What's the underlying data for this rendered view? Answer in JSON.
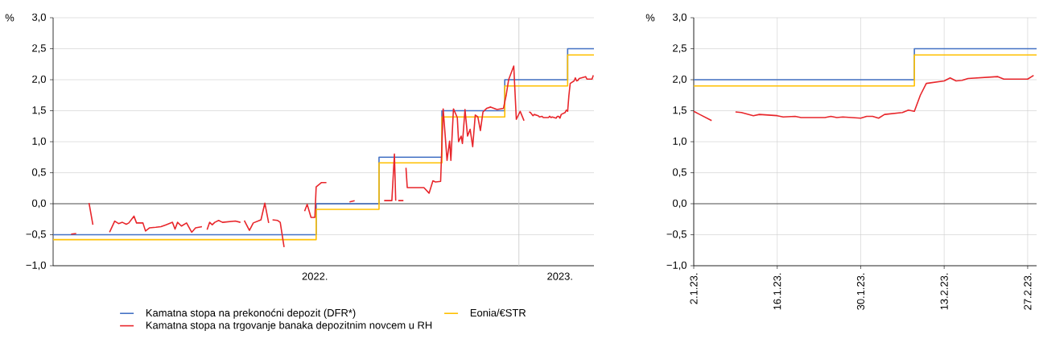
{
  "chart_data": [
    {
      "type": "line",
      "ylabel": "%",
      "xlim": [
        "2022-01-03",
        "2023-02-28T12:00"
      ],
      "ylim": [
        -1.0,
        3.0
      ],
      "xticks": [
        {
          "value": "2022-07-26",
          "label": "2022."
        },
        {
          "value": "2023-02-02",
          "label": "2023."
        }
      ],
      "yticks": [
        {
          "value": -1.0,
          "label": "−1,0"
        },
        {
          "value": -0.5,
          "label": "−0,5"
        },
        {
          "value": 0.0,
          "label": "0,0"
        },
        {
          "value": 0.5,
          "label": "0,5"
        },
        {
          "value": 1.0,
          "label": "1,0"
        },
        {
          "value": 1.5,
          "label": "1,5"
        },
        {
          "value": 2.0,
          "label": "2,0"
        },
        {
          "value": 2.5,
          "label": "2,5"
        },
        {
          "value": 3.0,
          "label": "3,0"
        }
      ],
      "grid": "y",
      "legend": "bottom",
      "line_style": "solid",
      "marker": "none",
      "ref_lines": [
        {
          "axis": "y",
          "value": 0,
          "color": "#333333"
        },
        {
          "axis": "x",
          "value": "2023-01-01",
          "color": "#c8c8c8"
        }
      ],
      "series": [
        {
          "name": "Kamatna stopa na prekonoćni depozit (DFR*)",
          "type": "step",
          "color": "#4472c4",
          "x": [
            "2022-01-03",
            "2022-07-27",
            "2022-09-14",
            "2022-11-02",
            "2022-12-21",
            "2023-02-08",
            "2023-02-28T12:00"
          ],
          "values": [
            -0.5,
            0.0,
            0.75,
            1.5,
            2.0,
            2.5,
            2.5
          ]
        },
        {
          "name": "Eonia/€STR",
          "type": "step",
          "color": "#ffc000",
          "x": [
            "2022-01-03",
            "2022-07-27",
            "2022-09-14",
            "2022-11-02",
            "2022-12-21",
            "2023-02-08",
            "2023-02-28T12:00"
          ],
          "values": [
            -0.58,
            -0.09,
            0.66,
            1.4,
            1.9,
            2.4,
            2.4
          ]
        },
        {
          "name": "Kamatna stopa na trgovanje banaka depozitnim novcem u RH",
          "type": "line",
          "color": "#e8262b",
          "x": [
            "2022-01-17",
            "2022-01-21",
            "2022-01-25",
            "2022-01-31",
            "2022-02-03",
            "2022-02-09",
            "2022-02-16",
            "2022-02-20",
            "2022-02-23",
            "2022-02-26",
            "2022-03-01",
            "2022-03-03",
            "2022-03-07",
            "2022-03-09",
            "2022-03-14",
            "2022-03-16",
            "2022-03-19",
            "2022-03-24",
            "2022-03-28",
            "2022-04-01",
            "2022-04-06",
            "2022-04-08",
            "2022-04-10",
            "2022-04-13",
            "2022-04-17",
            "2022-04-21",
            "2022-04-24",
            "2022-04-29",
            "2022-05-01",
            "2022-05-03",
            "2022-05-05",
            "2022-05-07",
            "2022-05-09",
            "2022-05-12",
            "2022-05-15",
            "2022-05-25",
            "2022-05-29",
            "2022-05-31",
            "2022-06-01",
            "2022-06-05",
            "2022-06-08",
            "2022-06-14",
            "2022-06-17",
            "2022-06-20",
            "2022-06-21",
            "2022-06-23",
            "2022-06-27",
            "2022-06-29",
            "2022-07-02",
            "2022-07-10",
            "2022-07-18",
            "2022-07-20",
            "2022-07-23",
            "2022-07-26",
            "2022-07-27",
            "2022-07-31",
            "2022-08-04",
            "2022-08-15",
            "2022-08-22",
            "2022-08-26",
            "2022-09-01",
            "2022-09-18",
            "2022-09-24",
            "2022-09-26",
            "2022-09-27",
            "2022-09-28",
            "2022-09-29",
            "2022-10-03",
            "2022-10-04",
            "2022-10-05",
            "2022-10-06",
            "2022-10-19",
            "2022-10-23",
            "2022-10-26",
            "2022-10-28",
            "2022-11-01",
            "2022-11-03",
            "2022-11-06",
            "2022-11-08",
            "2022-11-09",
            "2022-11-11",
            "2022-11-14",
            "2022-11-15",
            "2022-11-17",
            "2022-11-18",
            "2022-11-20",
            "2022-11-22",
            "2022-11-24",
            "2022-11-26",
            "2022-11-28",
            "2022-11-30",
            "2022-12-02",
            "2022-12-04",
            "2022-12-07",
            "2022-12-10",
            "2022-12-15",
            "2022-12-20",
            "2022-12-22",
            "2022-12-24",
            "2022-12-28",
            "2022-12-30",
            "2023-01-02",
            "2023-01-03",
            "2023-01-05",
            "2023-01-07",
            "2023-01-09",
            "2023-01-10",
            "2023-01-12",
            "2023-01-13",
            "2023-01-16",
            "2023-01-17",
            "2023-01-19",
            "2023-01-20",
            "2023-01-24",
            "2023-01-25",
            "2023-01-26",
            "2023-01-27",
            "2023-01-30",
            "2023-01-31",
            "2023-02-01",
            "2023-02-02",
            "2023-02-03",
            "2023-02-06",
            "2023-02-07",
            "2023-02-08",
            "2023-02-09",
            "2023-02-10",
            "2023-02-13",
            "2023-02-14",
            "2023-02-15",
            "2023-02-16",
            "2023-02-17",
            "2023-02-22",
            "2023-02-23",
            "2023-02-27",
            "2023-02-28"
          ],
          "values": [
            -0.49,
            -0.48,
            null,
            0.01,
            -0.34,
            null,
            -0.46,
            -0.28,
            -0.32,
            -0.3,
            -0.33,
            -0.31,
            -0.2,
            -0.31,
            -0.31,
            -0.44,
            -0.39,
            -0.38,
            -0.37,
            -0.34,
            -0.3,
            -0.41,
            -0.3,
            -0.36,
            -0.31,
            -0.46,
            -0.39,
            -0.37,
            null,
            -0.42,
            -0.3,
            -0.34,
            -0.3,
            -0.27,
            -0.3,
            -0.28,
            -0.3,
            null,
            -0.27,
            -0.43,
            -0.31,
            -0.26,
            0.01,
            -0.31,
            null,
            -0.26,
            -0.27,
            -0.3,
            -0.7,
            null,
            -0.12,
            -0.01,
            -0.22,
            -0.22,
            0.27,
            0.34,
            0.34,
            null,
            0.03,
            0.05,
            null,
            0.05,
            0.05,
            0.8,
            0.05,
            null,
            0.05,
            0.05,
            null,
            0.58,
            0.26,
            0.26,
            0.17,
            0.37,
            0.35,
            0.36,
            1.53,
            0.7,
            1.01,
            0.7,
            1.53,
            1.39,
            1.0,
            1.09,
            0.97,
            1.52,
            1.09,
            1.2,
            0.92,
            1.43,
            1.4,
            1.18,
            1.48,
            1.54,
            1.56,
            1.52,
            1.54,
            1.74,
            2.0,
            2.22,
            1.36,
            1.49,
            1.44,
            1.34,
            null,
            1.48,
            1.47,
            1.42,
            1.44,
            1.42,
            1.4,
            1.41,
            1.39,
            1.39,
            1.41,
            1.39,
            1.4,
            1.38,
            1.41,
            1.41,
            1.38,
            1.44,
            1.47,
            1.51,
            1.49,
            1.75,
            1.94,
            1.98,
            2.03,
            1.98,
            1.99,
            2.02,
            2.05,
            2.01,
            2.01,
            2.07
          ]
        }
      ]
    },
    {
      "type": "line",
      "ylabel": "%",
      "xlim": [
        "2023-01-02",
        "2023-02-28T12:00"
      ],
      "ylim": [
        -1.0,
        3.0
      ],
      "xticks": [
        {
          "value": "2023-01-02",
          "label": "2.1.23."
        },
        {
          "value": "2023-01-16",
          "label": "16.1.23."
        },
        {
          "value": "2023-01-30",
          "label": "30.1.23."
        },
        {
          "value": "2023-02-13",
          "label": "13.2.23."
        },
        {
          "value": "2023-02-27",
          "label": "27.2.23."
        }
      ],
      "yticks": [
        {
          "value": -1.0,
          "label": "−1,0"
        },
        {
          "value": -0.5,
          "label": "−0,5"
        },
        {
          "value": 0.0,
          "label": "0,0"
        },
        {
          "value": 0.5,
          "label": "0,5"
        },
        {
          "value": 1.0,
          "label": "1,0"
        },
        {
          "value": 1.5,
          "label": "1,5"
        },
        {
          "value": 2.0,
          "label": "2,0"
        },
        {
          "value": 2.5,
          "label": "2,5"
        },
        {
          "value": 3.0,
          "label": "3,0"
        }
      ],
      "grid": true,
      "line_style": "solid",
      "marker": "none",
      "ref_lines": [
        {
          "axis": "y",
          "value": 0,
          "color": "#333333"
        }
      ],
      "series": [
        {
          "type": "step",
          "color": "#4472c4",
          "x": [
            "2023-01-02",
            "2023-02-08",
            "2023-02-28T12:00"
          ],
          "values": [
            2.0,
            2.5,
            2.5
          ]
        },
        {
          "type": "step",
          "color": "#ffc000",
          "x": [
            "2023-01-02",
            "2023-02-08",
            "2023-02-28T12:00"
          ],
          "values": [
            1.9,
            2.4,
            2.4
          ]
        },
        {
          "type": "line",
          "color": "#e8262b",
          "x": [
            "2023-01-02",
            "2023-01-03",
            "2023-01-05",
            "2023-01-07",
            "2023-01-09",
            "2023-01-10",
            "2023-01-12",
            "2023-01-13",
            "2023-01-16",
            "2023-01-17",
            "2023-01-19",
            "2023-01-20",
            "2023-01-24",
            "2023-01-25",
            "2023-01-26",
            "2023-01-27",
            "2023-01-30",
            "2023-01-31",
            "2023-02-01",
            "2023-02-02",
            "2023-02-03",
            "2023-02-06",
            "2023-02-07",
            "2023-02-08",
            "2023-02-09",
            "2023-02-10",
            "2023-02-13",
            "2023-02-14",
            "2023-02-15",
            "2023-02-16",
            "2023-02-17",
            "2023-02-22",
            "2023-02-23",
            "2023-02-27",
            "2023-02-28"
          ],
          "values": [
            1.49,
            1.44,
            1.34,
            null,
            1.48,
            1.47,
            1.42,
            1.44,
            1.42,
            1.4,
            1.41,
            1.39,
            1.39,
            1.41,
            1.39,
            1.4,
            1.38,
            1.41,
            1.41,
            1.38,
            1.44,
            1.47,
            1.51,
            1.49,
            1.75,
            1.94,
            1.98,
            2.03,
            1.98,
            1.99,
            2.02,
            2.05,
            2.01,
            2.01,
            2.07
          ]
        }
      ]
    }
  ]
}
